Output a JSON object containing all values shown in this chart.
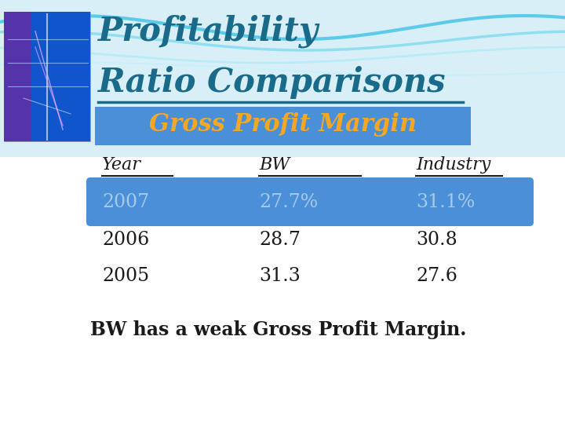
{
  "title_line1": "Profitability",
  "title_line2": "Ratio Comparisons",
  "title_color": "#1a6b8a",
  "title_underline_color": "#1a6b8a",
  "subtitle": "Gross Profit Margin",
  "subtitle_color": "#f5a623",
  "subtitle_bg": "#4a90d9",
  "headers": [
    "Year",
    "BW",
    "Industry"
  ],
  "rows": [
    [
      "2007",
      "27.7%",
      "31.1%"
    ],
    [
      "2006",
      "28.7",
      "30.8"
    ],
    [
      "2005",
      "31.3",
      "27.6"
    ]
  ],
  "highlight_row": 0,
  "highlight_bg": "#4a90d9",
  "highlight_text": "#a8c8e8",
  "normal_text": "#1a1a1a",
  "footer": "BW has a weak Gross Profit Margin.",
  "wave_colors": [
    "#7ecfe8",
    "#aadded",
    "#c5eaf5"
  ],
  "wave_bg": "#cceeff",
  "img_bg": "#44228a",
  "img_purple": "#662299",
  "img_blue": "#2244aa"
}
